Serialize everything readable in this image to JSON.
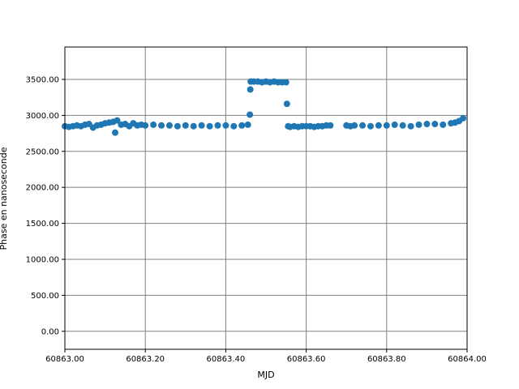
{
  "chart_data": {
    "type": "scatter",
    "x_label": "MJD",
    "y_label": "Phase en nanoseconde",
    "color": "#1f77b4",
    "grid": true,
    "xlim": [
      60863.0,
      60864.0
    ],
    "ylim": [
      -250,
      3950
    ],
    "xticks": [
      {
        "value": 60863.0,
        "label": "60863.00"
      },
      {
        "value": 60863.2,
        "label": "60863.20"
      },
      {
        "value": 60863.4,
        "label": "60863.40"
      },
      {
        "value": 60863.6,
        "label": "60863.60"
      },
      {
        "value": 60863.8,
        "label": "60863.80"
      },
      {
        "value": 60864.0,
        "label": "60864.00"
      }
    ],
    "yticks": [
      {
        "value": 0,
        "label": "0.00"
      },
      {
        "value": 500,
        "label": "500.00"
      },
      {
        "value": 1000,
        "label": "1000.00"
      },
      {
        "value": 1500,
        "label": "1500.00"
      },
      {
        "value": 2000,
        "label": "2000.00"
      },
      {
        "value": 2500,
        "label": "2500.00"
      },
      {
        "value": 3000,
        "label": "3000.00"
      },
      {
        "value": 3500,
        "label": "3500.00"
      }
    ],
    "x": [
      60863.0,
      60863.01,
      60863.02,
      60863.03,
      60863.04,
      60863.05,
      60863.06,
      60863.07,
      60863.08,
      60863.09,
      60863.1,
      60863.11,
      60863.12,
      60863.125,
      60863.13,
      60863.14,
      60863.15,
      60863.16,
      60863.17,
      60863.18,
      60863.19,
      60863.2,
      60863.22,
      60863.24,
      60863.26,
      60863.28,
      60863.3,
      60863.32,
      60863.34,
      60863.36,
      60863.38,
      60863.4,
      60863.42,
      60863.44,
      60863.455,
      60863.46,
      60863.461,
      60863.462,
      60863.47,
      60863.48,
      60863.49,
      60863.5,
      60863.51,
      60863.52,
      60863.53,
      60863.54,
      60863.55,
      60863.552,
      60863.555,
      60863.56,
      60863.57,
      60863.58,
      60863.59,
      60863.6,
      60863.61,
      60863.62,
      60863.63,
      60863.64,
      60863.65,
      60863.66,
      60863.7,
      60863.71,
      60863.72,
      60863.74,
      60863.76,
      60863.78,
      60863.8,
      60863.82,
      60863.84,
      60863.86,
      60863.88,
      60863.9,
      60863.92,
      60863.94,
      60863.96,
      60863.97,
      60863.98,
      60863.99
    ],
    "values": [
      2850,
      2840,
      2850,
      2860,
      2850,
      2870,
      2880,
      2830,
      2860,
      2870,
      2890,
      2900,
      2910,
      2760,
      2930,
      2870,
      2880,
      2850,
      2890,
      2860,
      2870,
      2860,
      2870,
      2860,
      2860,
      2850,
      2860,
      2850,
      2860,
      2850,
      2860,
      2860,
      2850,
      2860,
      2870,
      3010,
      3360,
      3470,
      3470,
      3470,
      3460,
      3470,
      3460,
      3470,
      3460,
      3460,
      3460,
      3160,
      2850,
      2840,
      2850,
      2840,
      2850,
      2850,
      2850,
      2840,
      2850,
      2850,
      2860,
      2860,
      2860,
      2850,
      2860,
      2860,
      2850,
      2860,
      2860,
      2870,
      2860,
      2850,
      2870,
      2880,
      2880,
      2870,
      2890,
      2900,
      2920,
      2960
    ]
  }
}
